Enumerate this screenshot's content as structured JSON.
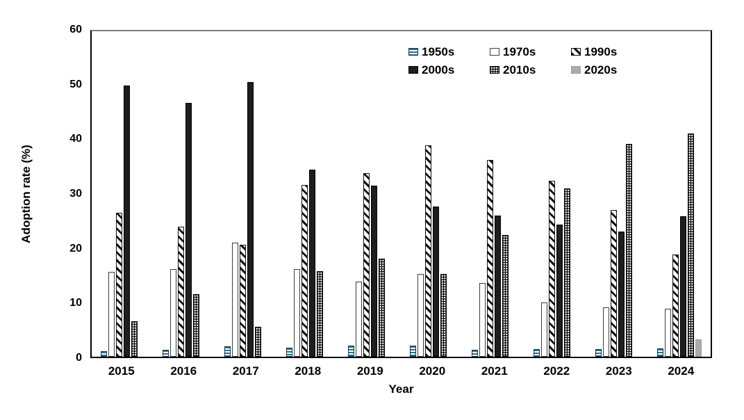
{
  "chart_data": {
    "type": "bar",
    "title": "",
    "xlabel": "Year",
    "ylabel": "Adoption rate (%)",
    "ylim": [
      0,
      60
    ],
    "ytick_step": 10,
    "ytick_labels": [
      "0",
      "10",
      "20",
      "30",
      "40",
      "50",
      "60"
    ],
    "grid": false,
    "legend_position": "top-center-two-rows",
    "categories": [
      "2015",
      "2016",
      "2017",
      "2018",
      "2019",
      "2020",
      "2021",
      "2022",
      "2023",
      "2024"
    ],
    "series": [
      {
        "name": "1950s",
        "pattern": "horizontal-stripes-blue",
        "values": [
          1.0,
          1.3,
          1.9,
          1.7,
          2.1,
          2.0,
          1.3,
          1.4,
          1.4,
          1.6
        ]
      },
      {
        "name": "1970s",
        "pattern": "white-outline",
        "values": [
          15.7,
          16.2,
          21.0,
          16.1,
          13.9,
          15.3,
          13.6,
          10.0,
          9.1,
          8.9
        ]
      },
      {
        "name": "1990s",
        "pattern": "diagonal-hatch",
        "values": [
          26.5,
          24.0,
          20.7,
          31.7,
          33.8,
          39.0,
          36.3,
          32.5,
          27.0,
          18.8
        ]
      },
      {
        "name": "2000s",
        "pattern": "solid-black",
        "values": [
          50.0,
          46.8,
          50.7,
          34.5,
          31.6,
          27.7,
          26.0,
          24.4,
          23.1,
          25.9
        ]
      },
      {
        "name": "2010s",
        "pattern": "dot-grid-black",
        "values": [
          6.6,
          11.6,
          5.5,
          15.8,
          18.1,
          15.3,
          22.4,
          31.0,
          39.2,
          41.2
        ]
      },
      {
        "name": "2020s",
        "pattern": "solid-gray",
        "values": [
          0,
          0,
          0,
          0,
          0,
          0,
          0,
          0,
          0,
          3.2
        ]
      }
    ]
  },
  "colors": {
    "stripe_blue": "#2f6d8e",
    "solid_black": "#1e1e1e",
    "solid_gray": "#ababab",
    "frame_top_gray": "#7f7f7f",
    "axis_black": "#000000",
    "background": "#ffffff"
  }
}
